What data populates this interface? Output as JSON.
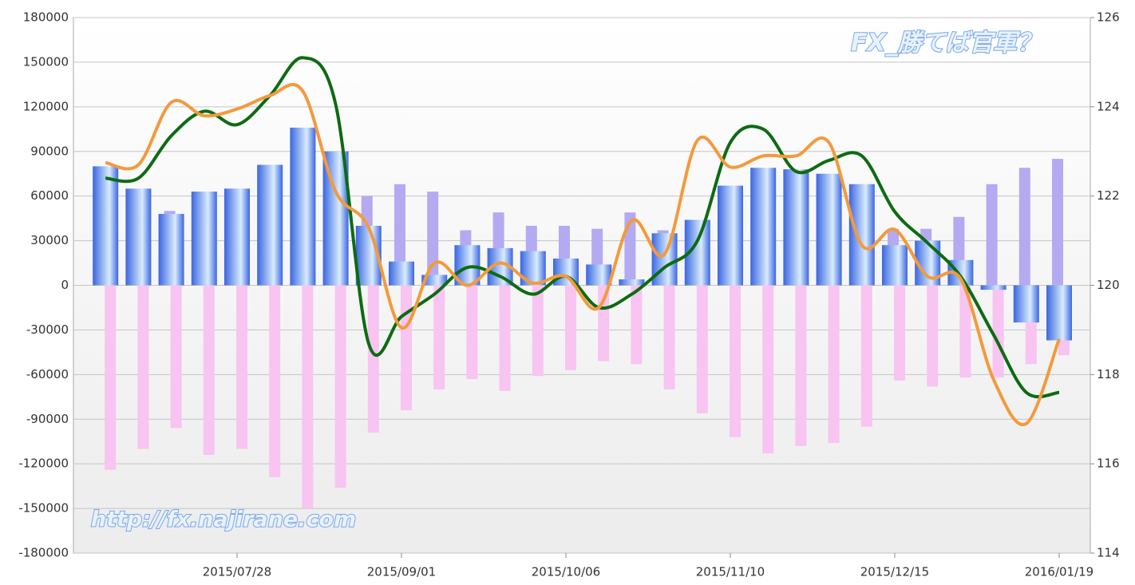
{
  "chart_data": {
    "type": "bar",
    "categories": [
      null,
      null,
      null,
      null,
      "2015/07/28",
      null,
      null,
      null,
      null,
      "2015/09/01",
      null,
      null,
      null,
      null,
      "2015/10/06",
      null,
      null,
      null,
      null,
      "2015/11/10",
      null,
      null,
      null,
      null,
      "2015/12/15",
      null,
      null,
      null,
      null,
      "2016/01/19"
    ],
    "series": [
      {
        "type": "bar",
        "color": "#b4aaf2",
        "values": [
          45000,
          46000,
          50000,
          52000,
          46000,
          50000,
          46000,
          46000,
          60000,
          68000,
          63000,
          37000,
          49000,
          40000,
          40000,
          38000,
          49000,
          37000,
          42000,
          35000,
          34000,
          30000,
          30000,
          27000,
          38000,
          38000,
          46000,
          68000,
          79000,
          85000
        ]
      },
      {
        "type": "bar",
        "color": "#f8c4f2",
        "values": [
          -124000,
          -110000,
          -96000,
          -114000,
          -110000,
          -129000,
          -150000,
          -136000,
          -99000,
          -84000,
          -70000,
          -63000,
          -71000,
          -61000,
          -57000,
          -51000,
          -53000,
          -70000,
          -86000,
          -102000,
          -113000,
          -108000,
          -106000,
          -95000,
          -64000,
          -68000,
          -62000,
          -62000,
          -53000,
          -47000
        ]
      },
      {
        "type": "bar",
        "color": "#3f6fe6",
        "values": [
          80000,
          65000,
          48000,
          63000,
          65000,
          81000,
          106000,
          90000,
          40000,
          16000,
          7000,
          27000,
          25000,
          23000,
          18000,
          14000,
          4000,
          35000,
          44000,
          67000,
          79000,
          78000,
          75000,
          68000,
          27000,
          30000,
          17000,
          -3000,
          -25000,
          -37000
        ]
      },
      {
        "type": "line",
        "axis": "y2",
        "color": "#0d6b12",
        "values": [
          122.4,
          122.4,
          123.35,
          123.9,
          123.6,
          124.25,
          125.1,
          124.05,
          118.7,
          119.3,
          119.8,
          120.4,
          120.2,
          119.8,
          120.2,
          119.5,
          119.8,
          120.4,
          121.0,
          123.2,
          123.5,
          122.55,
          122.8,
          122.9,
          121.65,
          120.95,
          120.2,
          118.9,
          117.6,
          117.6
        ]
      },
      {
        "type": "line",
        "axis": "y2",
        "color": "#f39a3c",
        "values": [
          122.75,
          122.7,
          124.1,
          123.8,
          123.95,
          124.25,
          124.35,
          122.1,
          121.3,
          119.05,
          120.5,
          120.0,
          120.5,
          120.05,
          120.2,
          119.5,
          121.45,
          120.7,
          123.25,
          122.65,
          122.9,
          122.9,
          123.2,
          120.9,
          121.25,
          120.2,
          120.15,
          117.9,
          116.9,
          118.8
        ]
      }
    ],
    "ylim": [
      -180000,
      180000
    ],
    "yticks": [
      -180000,
      -150000,
      -120000,
      -90000,
      -60000,
      -30000,
      0,
      30000,
      60000,
      90000,
      120000,
      150000,
      180000
    ],
    "y2lim": [
      114,
      126
    ],
    "y2ticks": [
      114,
      116,
      118,
      120,
      122,
      124,
      126
    ],
    "grid": true,
    "watermarks": [
      "FX_勝てば官軍？",
      "http://fx.najirane.com"
    ]
  }
}
